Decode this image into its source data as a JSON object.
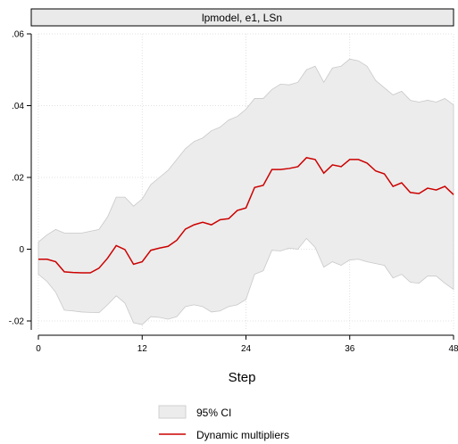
{
  "chart_data": {
    "type": "area",
    "title": "lpmodel, e1, LSn",
    "xlabel": "Step",
    "ylabel": "",
    "xlim": [
      0,
      48
    ],
    "ylim": [
      -0.02,
      0.06
    ],
    "x_ticks": [
      0,
      12,
      24,
      36,
      48
    ],
    "x_tick_labels": [
      "0",
      "12",
      "24",
      "36",
      "48"
    ],
    "y_ticks": [
      -0.02,
      0,
      0.02,
      0.04,
      0.06
    ],
    "y_tick_labels": [
      "-.02",
      "0",
      ".02",
      ".04",
      ".06"
    ],
    "grid": true,
    "legend_position": "bottom",
    "series": [
      {
        "name": "95% CI",
        "kind": "band",
        "color": "#ececec",
        "x": [
          0,
          1,
          2,
          3,
          4,
          5,
          6,
          7,
          8,
          9,
          10,
          11,
          12,
          13,
          14,
          15,
          16,
          17,
          18,
          19,
          20,
          21,
          22,
          23,
          24,
          25,
          26,
          27,
          28,
          29,
          30,
          31,
          32,
          33,
          34,
          35,
          36,
          37,
          38,
          39,
          40,
          41,
          42,
          43,
          44,
          45,
          46,
          47,
          48
        ],
        "lower": [
          -0.007,
          -0.009,
          -0.012,
          -0.017,
          -0.0172,
          -0.0175,
          -0.0176,
          -0.0177,
          -0.0155,
          -0.013,
          -0.015,
          -0.0205,
          -0.021,
          -0.0188,
          -0.019,
          -0.0195,
          -0.0188,
          -0.016,
          -0.0155,
          -0.016,
          -0.0175,
          -0.0172,
          -0.016,
          -0.0155,
          -0.014,
          -0.007,
          -0.006,
          -0.0003,
          -0.0005,
          0.0003,
          0.0,
          0.003,
          0.0005,
          -0.005,
          -0.0035,
          -0.0045,
          -0.003,
          -0.0028,
          -0.0035,
          -0.004,
          -0.0045,
          -0.008,
          -0.007,
          -0.0092,
          -0.0095,
          -0.0075,
          -0.0075,
          -0.0095,
          -0.0112
        ],
        "upper": [
          0.002,
          0.004,
          0.0055,
          0.0045,
          0.0045,
          0.0045,
          0.005,
          0.0055,
          0.009,
          0.0145,
          0.0145,
          0.012,
          0.014,
          0.018,
          0.02,
          0.022,
          0.025,
          0.028,
          0.03,
          0.031,
          0.033,
          0.034,
          0.036,
          0.037,
          0.039,
          0.042,
          0.042,
          0.0445,
          0.046,
          0.0458,
          0.0465,
          0.05,
          0.051,
          0.0465,
          0.0505,
          0.051,
          0.053,
          0.0525,
          0.051,
          0.047,
          0.045,
          0.043,
          0.044,
          0.0415,
          0.041,
          0.0415,
          0.041,
          0.042,
          0.0402
        ]
      },
      {
        "name": "Dynamic multipliers",
        "kind": "line",
        "color": "#cc0000",
        "x": [
          0,
          1,
          2,
          3,
          4,
          5,
          6,
          7,
          8,
          9,
          10,
          11,
          12,
          13,
          14,
          15,
          16,
          17,
          18,
          19,
          20,
          21,
          22,
          23,
          24,
          25,
          26,
          27,
          28,
          29,
          30,
          31,
          32,
          33,
          34,
          35,
          36,
          37,
          38,
          39,
          40,
          41,
          42,
          43,
          44,
          45,
          46,
          47,
          48
        ],
        "values": [
          -0.0028,
          -0.0028,
          -0.0035,
          -0.0063,
          -0.0065,
          -0.0066,
          -0.0066,
          -0.0053,
          -0.0025,
          0.001,
          -0.0001,
          -0.0042,
          -0.0035,
          -0.0003,
          0.0003,
          0.0008,
          0.0025,
          0.0056,
          0.0068,
          0.0075,
          0.0068,
          0.0082,
          0.0085,
          0.0108,
          0.0115,
          0.0172,
          0.0178,
          0.0222,
          0.0222,
          0.0225,
          0.023,
          0.0255,
          0.025,
          0.0212,
          0.0235,
          0.023,
          0.025,
          0.025,
          0.024,
          0.0218,
          0.021,
          0.0175,
          0.0185,
          0.0158,
          0.0155,
          0.017,
          0.0165,
          0.0175,
          0.0152
        ]
      }
    ]
  }
}
